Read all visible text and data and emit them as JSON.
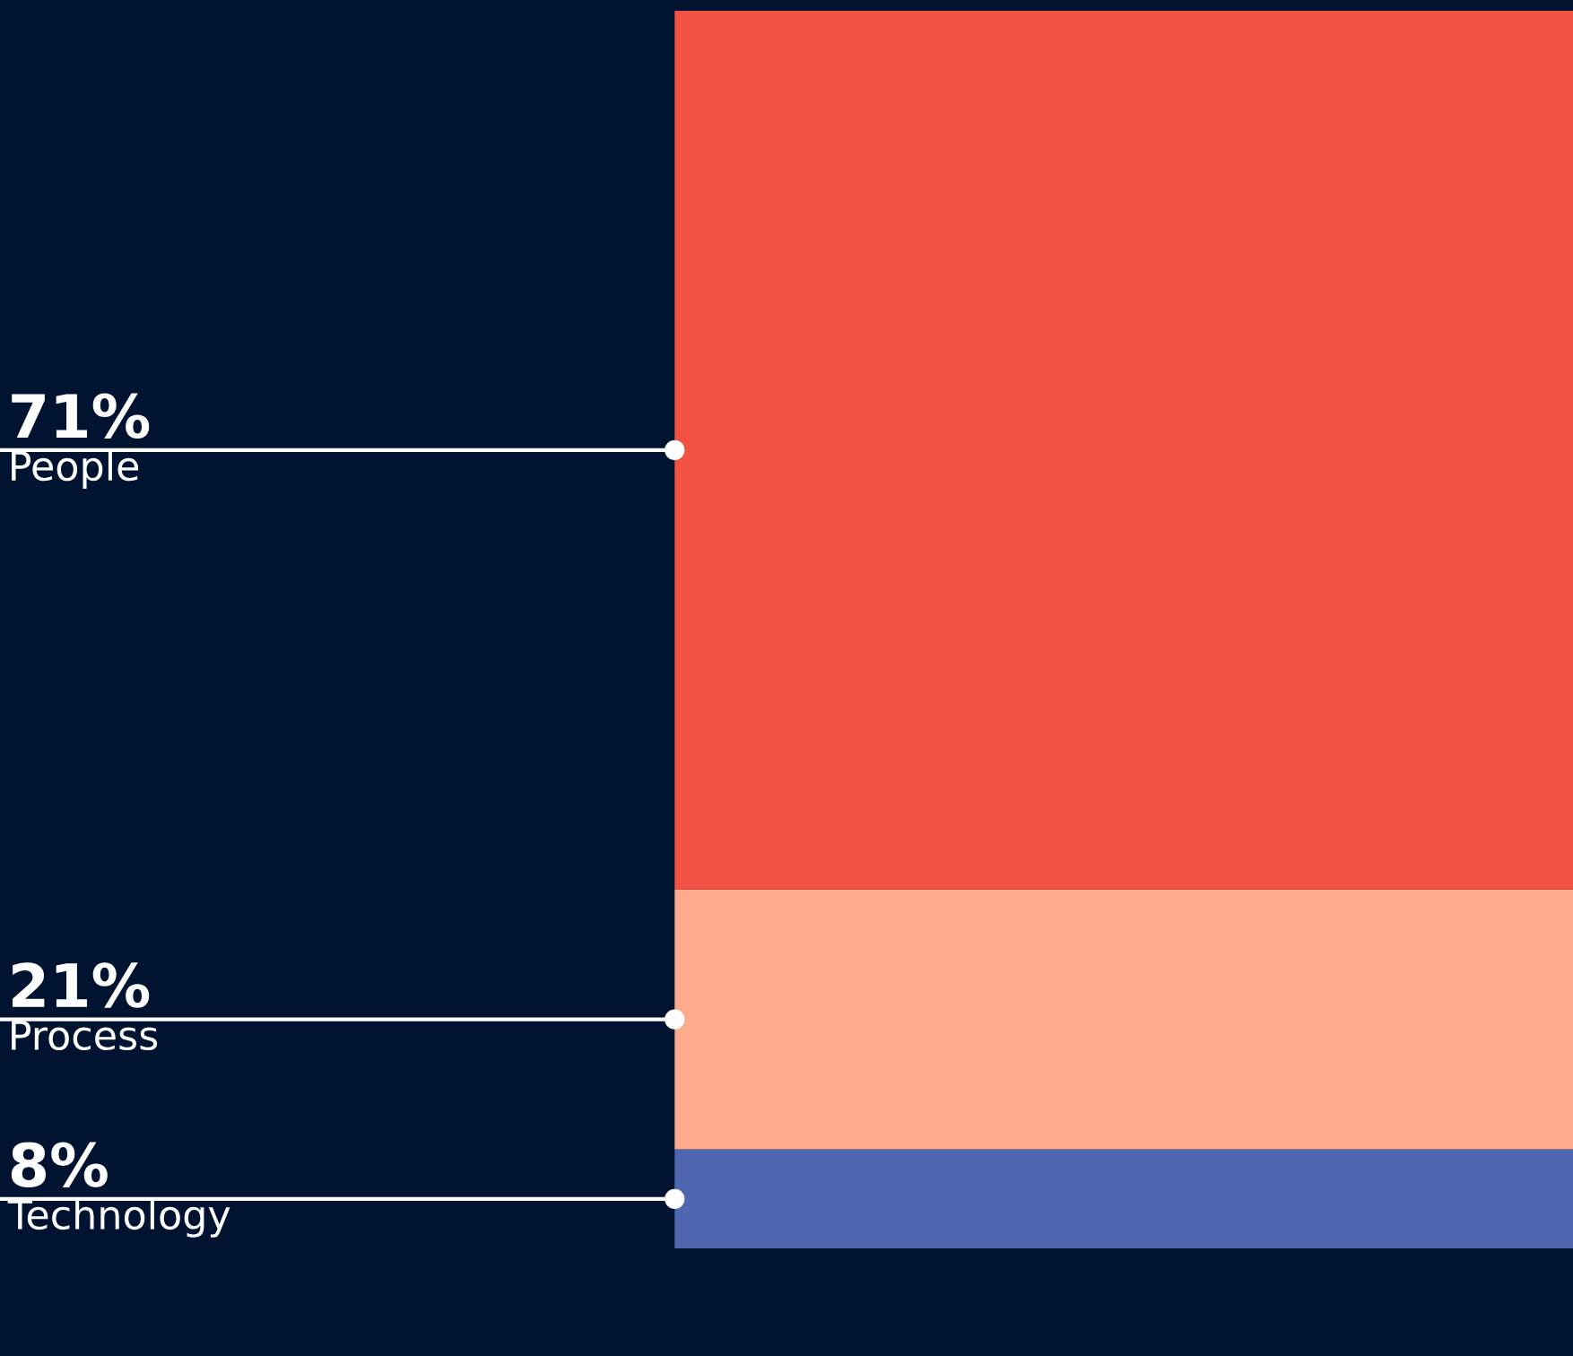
{
  "chart_data": {
    "type": "bar",
    "stacked": true,
    "categories": [
      null
    ],
    "series": [
      {
        "name": "Technology",
        "color": "#4f67b0",
        "values": [
          8
        ],
        "value_labels": [
          "8%"
        ]
      },
      {
        "name": "Process",
        "color": "#fdab8c",
        "values": [
          21
        ],
        "value_labels": [
          "21%"
        ]
      },
      {
        "name": "People",
        "color": "#f25241",
        "values": [
          71
        ],
        "value_labels": [
          "71%"
        ]
      }
    ],
    "legend": false,
    "grid": false
  }
}
